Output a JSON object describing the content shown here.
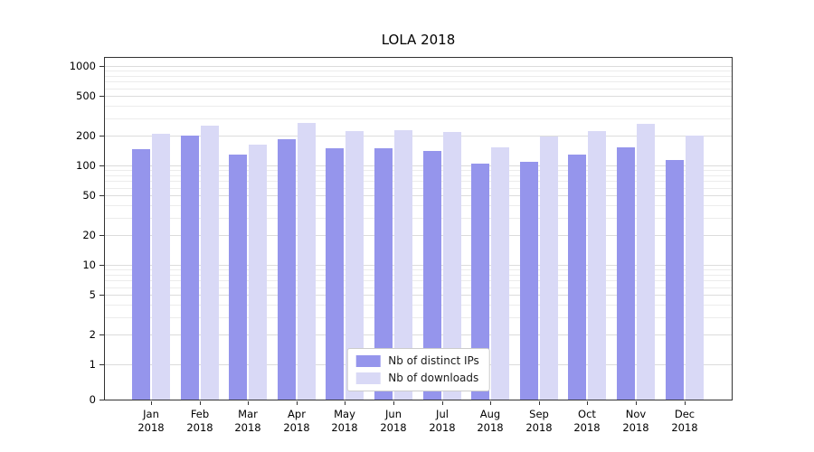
{
  "chart_data": {
    "type": "bar",
    "title": "LOLA 2018",
    "categories": [
      "Jan",
      "Feb",
      "Mar",
      "Apr",
      "May",
      "Jun",
      "Jul",
      "Aug",
      "Sep",
      "Oct",
      "Nov",
      "Dec"
    ],
    "x_tick_year": "2018",
    "series": [
      {
        "name": "Nb of distinct IPs",
        "color": "#9595ec",
        "values": [
          145,
          200,
          130,
          185,
          148,
          150,
          140,
          105,
          110,
          130,
          152,
          115
        ]
      },
      {
        "name": "Nb of downloads",
        "color": "#d9d9f6",
        "values": [
          210,
          250,
          163,
          270,
          222,
          228,
          218,
          153,
          195,
          220,
          265,
          202
        ]
      }
    ],
    "yscale": "symlog",
    "yticks": [
      0,
      1,
      2,
      5,
      10,
      20,
      50,
      100,
      200,
      500,
      1000
    ],
    "ylim": [
      0,
      1300
    ],
    "grid": true,
    "legend_position": "lower center",
    "grid_color_major": "#dcdcdc",
    "grid_color_minor": "#ececec"
  }
}
